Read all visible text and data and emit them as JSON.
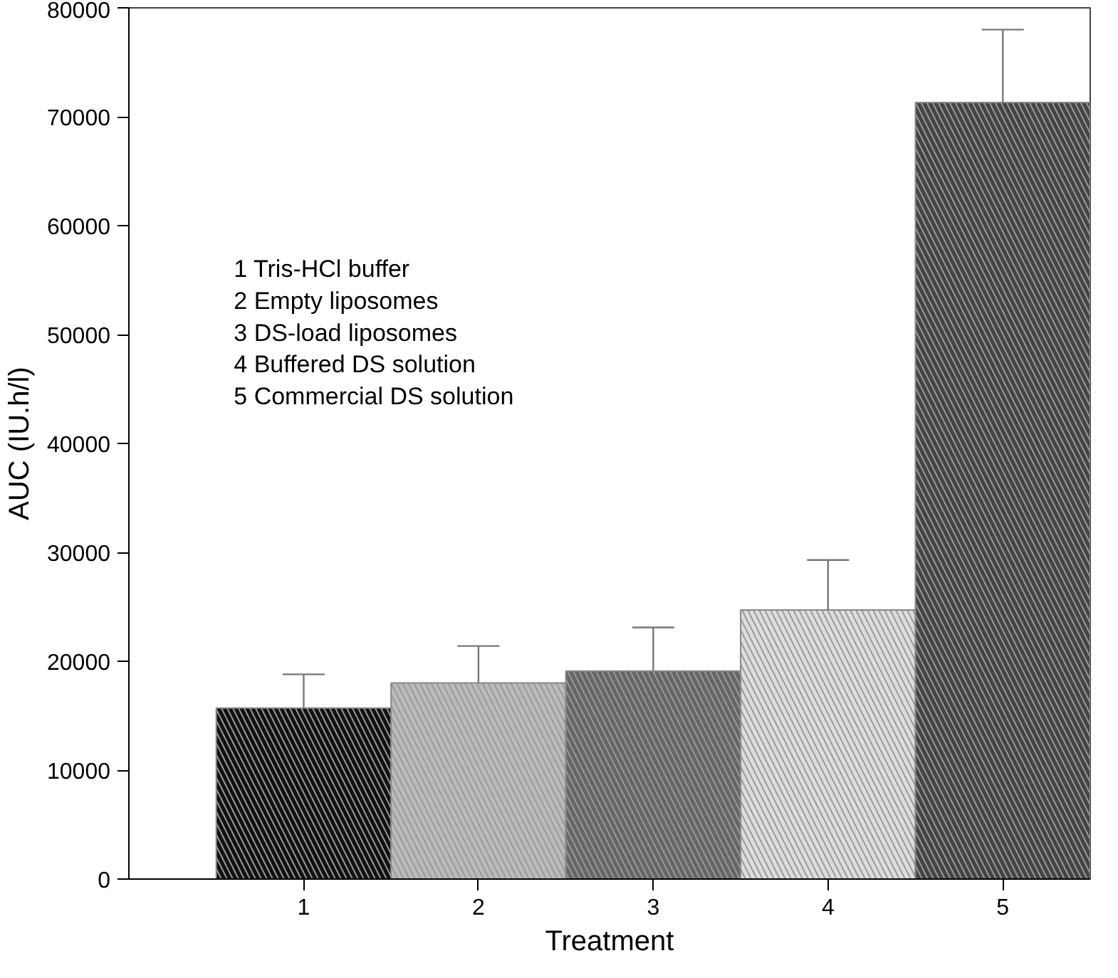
{
  "chart_data": {
    "type": "bar",
    "xlabel": "Treatment",
    "ylabel": "AUC (IU.h/l)",
    "categories": [
      "1",
      "2",
      "3",
      "4",
      "5"
    ],
    "values": [
      15700,
      18000,
      19100,
      24700,
      71300
    ],
    "errors": [
      [
        15700,
        18800
      ],
      [
        18000,
        21400
      ],
      [
        19100,
        23100
      ],
      [
        24700,
        29300
      ],
      [
        71300,
        78000
      ]
    ],
    "colors": [
      "#111111",
      "#bbbbbb",
      "#666666",
      "#dddddd",
      "#444444"
    ],
    "ylim": [
      0,
      80000
    ],
    "yticks": [
      0,
      10000,
      20000,
      30000,
      40000,
      50000,
      60000,
      70000,
      80000
    ],
    "grid": false,
    "annotations": [
      "1 Tris-HCl buffer",
      "2 Empty liposomes",
      "3 DS-load liposomes",
      "4 Buffered DS solution",
      "5 Commercial DS solution"
    ]
  }
}
